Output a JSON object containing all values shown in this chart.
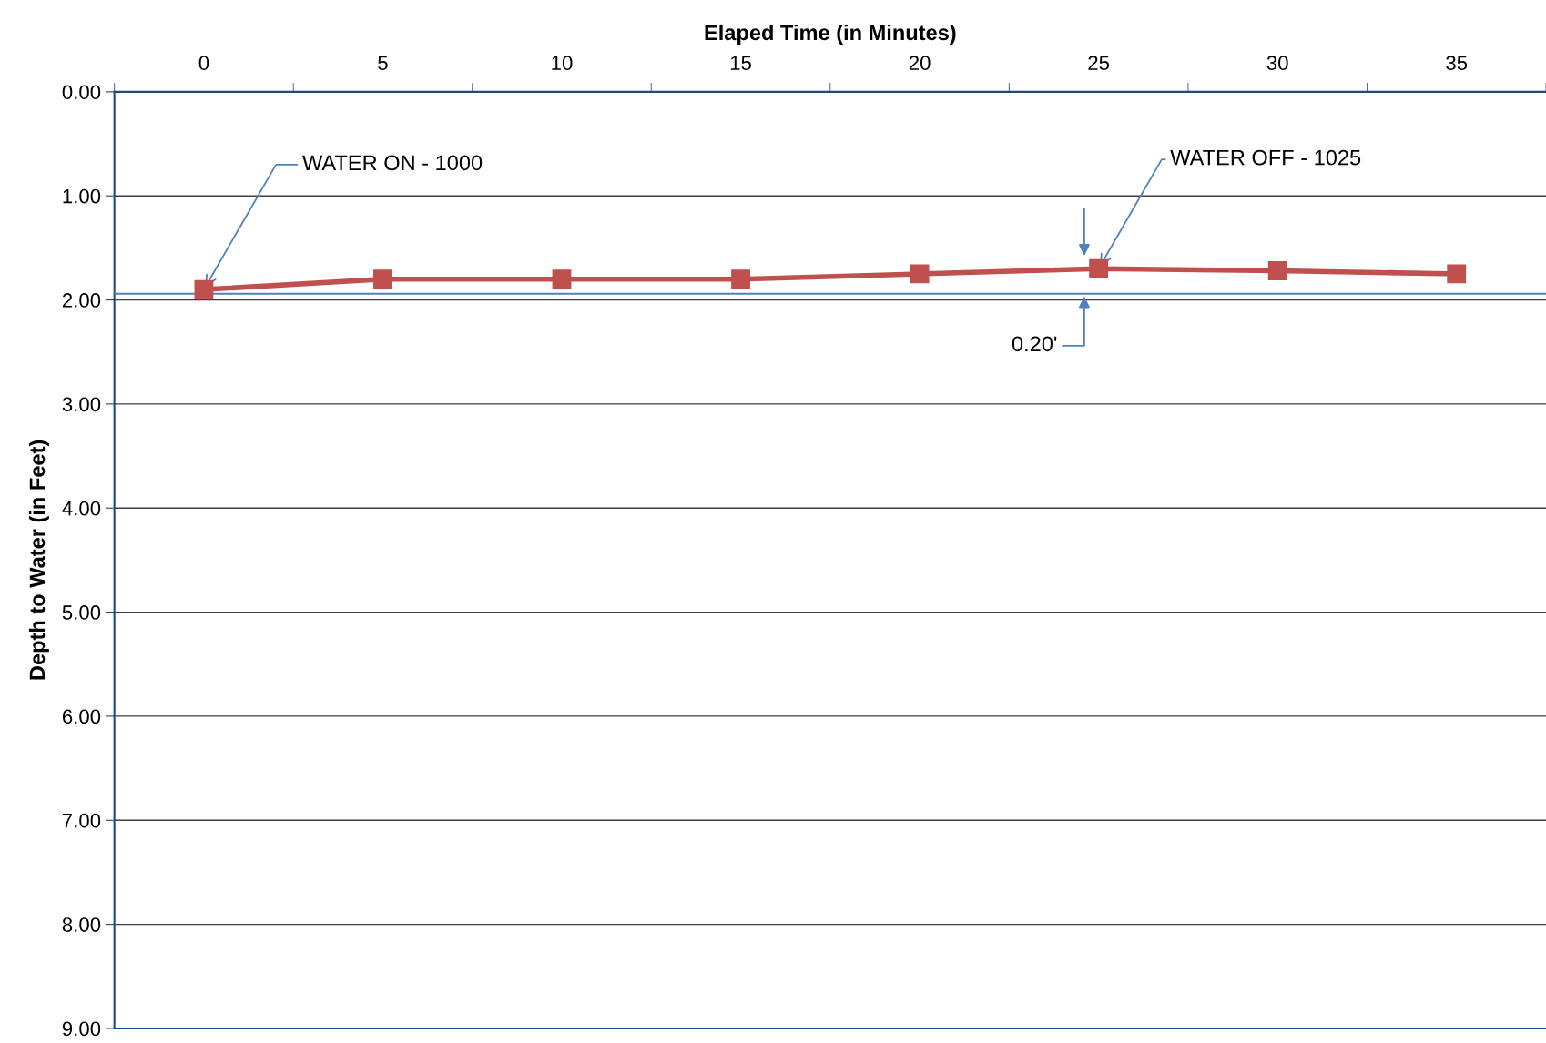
{
  "chart_data": {
    "type": "line",
    "xlabel": "Elaped Time (in Minutes)",
    "ylabel": "Depth to Water (in Feet)",
    "categories": [
      "0",
      "5",
      "10",
      "15",
      "20",
      "25",
      "30",
      "35"
    ],
    "series": [
      {
        "color": "#c0504d",
        "values": [
          1.9,
          1.8,
          1.8,
          1.8,
          1.75,
          1.7,
          1.72,
          1.75
        ]
      }
    ],
    "ylim": [
      9,
      0
    ],
    "yticks": [
      {
        "value": 0,
        "label": "0.00"
      },
      {
        "value": 1,
        "label": "1.00"
      },
      {
        "value": 2,
        "label": "2.00"
      },
      {
        "value": 3,
        "label": "3.00"
      },
      {
        "value": 4,
        "label": "4.00"
      },
      {
        "value": 5,
        "label": "5.00"
      },
      {
        "value": 6,
        "label": "6.00"
      },
      {
        "value": 7,
        "label": "7.00"
      },
      {
        "value": 8,
        "label": "8.00"
      },
      {
        "value": 9,
        "label": "9.00"
      }
    ],
    "ref_lines": [
      {
        "axis": "y",
        "value": 1.94,
        "color": "#4f81bd"
      }
    ],
    "annotations": [
      {
        "text": "WATER ON - 1000",
        "x": "0",
        "y": 1.9
      },
      {
        "text": "WATER OFF - 1025",
        "x": "25",
        "y": 1.7
      },
      {
        "text": "0.20'",
        "x": "25",
        "y": 1.94
      }
    ],
    "grid": "y",
    "marker": "square",
    "line_style": "solid",
    "legend": false
  }
}
